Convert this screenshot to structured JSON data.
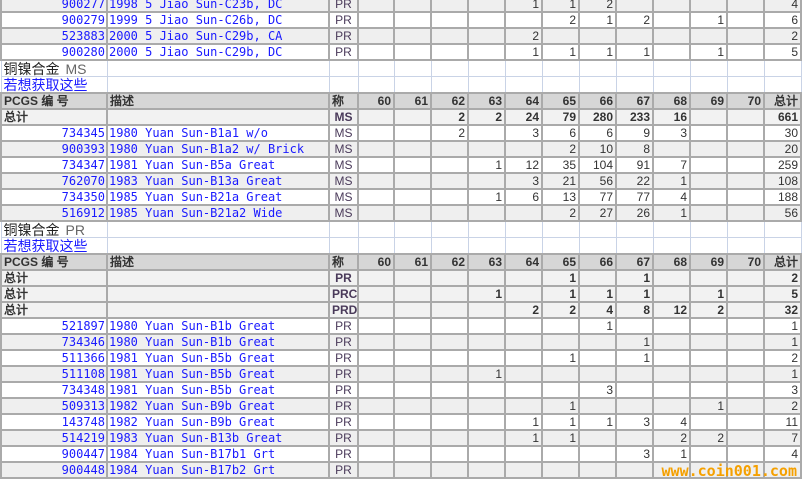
{
  "columns": [
    "PCGS 编 号",
    "描述",
    "称",
    "60",
    "61",
    "62",
    "63",
    "64",
    "65",
    "66",
    "67",
    "68",
    "69",
    "70",
    "总计"
  ],
  "grades": [
    "60",
    "61",
    "62",
    "63",
    "64",
    "65",
    "66",
    "67",
    "68",
    "69",
    "70"
  ],
  "blocks": [
    {
      "type": "rows",
      "rows": [
        {
          "code": "900277",
          "desc": "1998 5 Jiao Sun-C23b, DC",
          "des": "PR",
          "vals": {
            "64": "1",
            "65": "1",
            "66": "2"
          },
          "total": "4"
        },
        {
          "code": "900279",
          "desc": "1999 5 Jiao Sun-C26b, DC",
          "des": "PR",
          "vals": {
            "65": "2",
            "66": "1",
            "67": "2",
            "69": "1"
          },
          "total": "6"
        },
        {
          "code": "523883",
          "desc": "2000 5 Jiao Sun-C29b, CA",
          "des": "PR",
          "vals": {
            "64": "2"
          },
          "total": "2"
        },
        {
          "code": "900280",
          "desc": "2000 5 Jiao Sun-C29b, DC",
          "des": "PR",
          "vals": {
            "64": "1",
            "65": "1",
            "66": "1",
            "67": "1",
            "69": "1"
          },
          "total": "5"
        }
      ]
    },
    {
      "type": "section",
      "title": "铜镍合金",
      "suffix": "MS",
      "link": "若想获取这些"
    },
    {
      "type": "header"
    },
    {
      "type": "totals",
      "rows": [
        {
          "label": "总计",
          "des": "MS",
          "vals": {
            "62": "2",
            "63": "2",
            "64": "24",
            "65": "79",
            "66": "280",
            "67": "233",
            "68": "16"
          },
          "total": "661"
        }
      ]
    },
    {
      "type": "rows",
      "rows": [
        {
          "code": "734345",
          "desc": "1980 Yuan Sun-B1a1 w/o",
          "des": "MS",
          "vals": {
            "62": "2",
            "64": "3",
            "65": "6",
            "66": "6",
            "67": "9",
            "68": "3"
          },
          "total": "30"
        },
        {
          "code": "900393",
          "desc": "1980 Yuan Sun-B1a2 w/ Brick",
          "des": "MS",
          "vals": {
            "65": "2",
            "66": "10",
            "67": "8"
          },
          "total": "20"
        },
        {
          "code": "734347",
          "desc": "1981 Yuan Sun-B5a Great",
          "des": "MS",
          "vals": {
            "63": "1",
            "64": "12",
            "65": "35",
            "66": "104",
            "67": "91",
            "68": "7"
          },
          "total": "259"
        },
        {
          "code": "762070",
          "desc": "1983 Yuan Sun-B13a Great",
          "des": "MS",
          "vals": {
            "64": "3",
            "65": "21",
            "66": "56",
            "67": "22",
            "68": "1"
          },
          "total": "108"
        },
        {
          "code": "734350",
          "desc": "1985 Yuan Sun-B21a Great",
          "des": "MS",
          "vals": {
            "63": "1",
            "64": "6",
            "65": "13",
            "66": "77",
            "67": "77",
            "68": "4"
          },
          "total": "188"
        },
        {
          "code": "516912",
          "desc": "1985 Yuan Sun-B21a2 Wide",
          "des": "MS",
          "vals": {
            "65": "2",
            "66": "27",
            "67": "26",
            "68": "1"
          },
          "total": "56"
        }
      ]
    },
    {
      "type": "section",
      "title": "铜镍合金",
      "suffix": "PR",
      "link": "若想获取这些"
    },
    {
      "type": "header"
    },
    {
      "type": "totals",
      "rows": [
        {
          "label": "总计",
          "des": "PR",
          "vals": {
            "65": "1",
            "67": "1"
          },
          "total": "2"
        },
        {
          "label": "总计",
          "des": "PRC",
          "vals": {
            "63": "1",
            "65": "1",
            "66": "1",
            "67": "1",
            "69": "1"
          },
          "total": "5"
        },
        {
          "label": "总计",
          "des": "PRD",
          "vals": {
            "64": "2",
            "65": "2",
            "66": "4",
            "67": "8",
            "68": "12",
            "69": "2"
          },
          "total": "32"
        }
      ]
    },
    {
      "type": "rows",
      "rows": [
        {
          "code": "521897",
          "desc": "1980 Yuan Sun-B1b Great",
          "des": "PR",
          "vals": {
            "66": "1"
          },
          "total": "1"
        },
        {
          "code": "734346",
          "desc": "1980 Yuan Sun-B1b Great",
          "des": "PR",
          "vals": {
            "67": "1"
          },
          "total": "1"
        },
        {
          "code": "511366",
          "desc": "1981 Yuan Sun-B5b Great",
          "des": "PR",
          "vals": {
            "65": "1",
            "67": "1"
          },
          "total": "2"
        },
        {
          "code": "511108",
          "desc": "1981 Yuan Sun-B5b Great",
          "des": "PR",
          "vals": {
            "63": "1"
          },
          "total": "1"
        },
        {
          "code": "734348",
          "desc": "1981 Yuan Sun-B5b Great",
          "des": "PR",
          "vals": {
            "66": "3"
          },
          "total": "3"
        },
        {
          "code": "509313",
          "desc": "1982 Yuan Sun-B9b Great",
          "des": "PR",
          "vals": {
            "65": "1",
            "69": "1"
          },
          "total": "2"
        },
        {
          "code": "143748",
          "desc": "1982 Yuan Sun-B9b Great",
          "des": "PR",
          "vals": {
            "64": "1",
            "65": "1",
            "66": "1",
            "67": "3",
            "68": "4"
          },
          "total": "11"
        },
        {
          "code": "514219",
          "desc": "1983 Yuan Sun-B13b Great",
          "des": "PR",
          "vals": {
            "64": "1",
            "65": "1",
            "68": "2",
            "69": "2"
          },
          "total": "7"
        },
        {
          "code": "900447",
          "desc": "1984 Yuan Sun-B17b1 Grt",
          "des": "PR",
          "vals": {
            "67": "3",
            "68": "1"
          },
          "total": "4"
        },
        {
          "code": "900448",
          "desc": "1984 Yuan Sun-B17b2 Grt",
          "des": "PR",
          "vals": {},
          "total": ""
        }
      ]
    }
  ],
  "watermark": "www.coin001.com"
}
